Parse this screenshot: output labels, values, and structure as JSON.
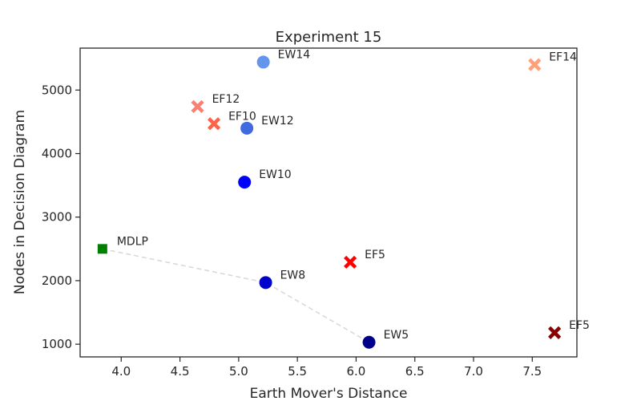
{
  "chart_data": {
    "type": "scatter",
    "title": "Experiment 15",
    "xlabel": "Earth Mover's Distance",
    "ylabel": "Nodes in Decision Diagram",
    "xlim": [
      3.65,
      7.88
    ],
    "ylim": [
      800,
      5660
    ],
    "xticks": [
      4.0,
      4.5,
      5.0,
      5.5,
      6.0,
      6.5,
      7.0,
      7.5
    ],
    "xtick_labels": [
      "4.0",
      "4.5",
      "5.0",
      "5.5",
      "6.0",
      "6.5",
      "7.0",
      "7.5"
    ],
    "yticks": [
      1000,
      2000,
      3000,
      4000,
      5000
    ],
    "ytick_labels": [
      "1000",
      "2000",
      "3000",
      "4000",
      "5000"
    ],
    "grid": false,
    "points": [
      {
        "label": "MDLP",
        "x": 3.84,
        "y": 2500,
        "marker": "square",
        "color": "#008000"
      },
      {
        "label": "EW5",
        "x": 6.11,
        "y": 1030,
        "marker": "circle",
        "color": "#00008b"
      },
      {
        "label": "EW8",
        "x": 5.23,
        "y": 1970,
        "marker": "circle",
        "color": "#0000cd"
      },
      {
        "label": "EW10",
        "x": 5.05,
        "y": 3550,
        "marker": "circle",
        "color": "#0000ff"
      },
      {
        "label": "EW12",
        "x": 5.07,
        "y": 4400,
        "marker": "circle",
        "color": "#4169e1"
      },
      {
        "label": "EW14",
        "x": 5.21,
        "y": 5440,
        "marker": "circle",
        "color": "#6495ed"
      },
      {
        "label": "EF5",
        "x": 5.95,
        "y": 2290,
        "marker": "x",
        "color": "#ff0000"
      },
      {
        "label": "EF5",
        "x": 7.69,
        "y": 1180,
        "marker": "x",
        "color": "#8b0000"
      },
      {
        "label": "EF10",
        "x": 4.79,
        "y": 4470,
        "marker": "x",
        "color": "#ff6347"
      },
      {
        "label": "EF12",
        "x": 4.65,
        "y": 4740,
        "marker": "x",
        "color": "#fa8072"
      },
      {
        "label": "EF14",
        "x": 7.52,
        "y": 5400,
        "marker": "x",
        "color": "#ffa07a"
      }
    ],
    "frontier_line": {
      "color": "#d9d9d9",
      "style": "dashed",
      "points": [
        {
          "x": 3.84,
          "y": 2500
        },
        {
          "x": 5.23,
          "y": 1970
        },
        {
          "x": 6.11,
          "y": 1030
        }
      ]
    }
  }
}
